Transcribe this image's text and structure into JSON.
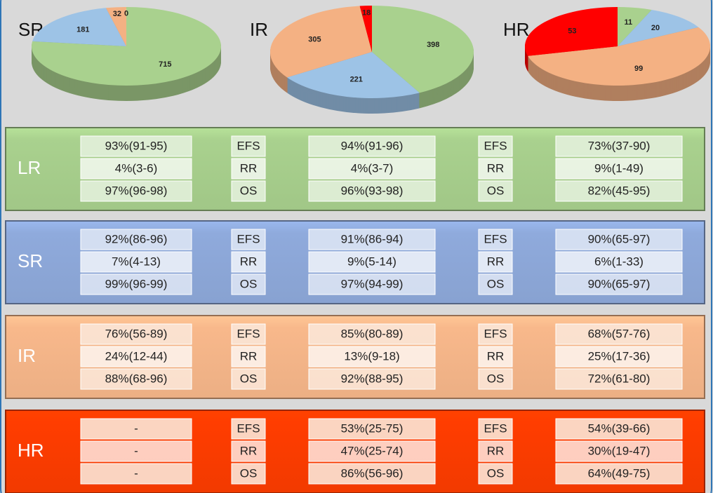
{
  "chart_data": [
    {
      "type": "pie",
      "title": "SR",
      "values": [
        715,
        181,
        32,
        0
      ],
      "colors": [
        "#a9d18e",
        "#9dc3e6",
        "#f4b183",
        "#ff0000"
      ]
    },
    {
      "type": "pie",
      "title": "IR",
      "values": [
        398,
        221,
        305,
        18
      ],
      "colors": [
        "#a9d18e",
        "#9dc3e6",
        "#f4b183",
        "#ff0000"
      ]
    },
    {
      "type": "pie",
      "title": "HR",
      "values": [
        11,
        20,
        99,
        53
      ],
      "colors": [
        "#a9d18e",
        "#9dc3e6",
        "#f4b183",
        "#ff0000"
      ]
    }
  ],
  "table": {
    "groups": [
      {
        "label": "LR",
        "color": "#a9d18e",
        "rows": [
          [
            "93%(91-95)",
            "EFS",
            "94%(91-96)",
            "EFS",
            "73%(37-90)"
          ],
          [
            "4%(3-6)",
            "RR",
            "4%(3-7)",
            "RR",
            "9%(1-49)"
          ],
          [
            "97%(96-98)",
            "OS",
            "96%(93-98)",
            "OS",
            "82%(45-95)"
          ]
        ]
      },
      {
        "label": "SR",
        "color": "#8faadc",
        "rows": [
          [
            "92%(86-96)",
            "EFS",
            "91%(86-94)",
            "EFS",
            "90%(65-97)"
          ],
          [
            "7%(4-13)",
            "RR",
            "9%(5-14)",
            "RR",
            "6%(1-33)"
          ],
          [
            "99%(96-99)",
            "OS",
            "97%(94-99)",
            "OS",
            "90%(65-97)"
          ]
        ]
      },
      {
        "label": "IR",
        "color": "#f8b88b",
        "rows": [
          [
            "76%(56-89)",
            "EFS",
            "85%(80-89)",
            "EFS",
            "68%(57-76)"
          ],
          [
            "24%(12-44)",
            "RR",
            "13%(9-18)",
            "RR",
            "25%(17-36)"
          ],
          [
            "88%(68-96)",
            "OS",
            "92%(88-95)",
            "OS",
            "72%(61-80)"
          ]
        ]
      },
      {
        "label": "HR",
        "color": "#ff3d00",
        "rows": [
          [
            "-",
            "EFS",
            "53%(25-75)",
            "EFS",
            "54%(39-66)"
          ],
          [
            "-",
            "RR",
            "47%(25-74)",
            "RR",
            "30%(19-47)"
          ],
          [
            "-",
            "OS",
            "86%(56-96)",
            "OS",
            "64%(49-75)"
          ]
        ]
      }
    ]
  }
}
